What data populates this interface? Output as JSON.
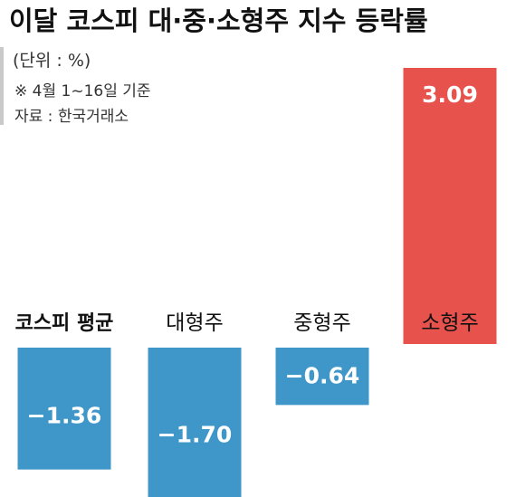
{
  "chart_data": {
    "type": "bar",
    "title": "이달 코스피 대·중·소형주 지수 등락률",
    "unit_note": "(단위 : %)",
    "period_note": "※ 4월 1~16일 기준",
    "source_note": "자료 : 한국거래소",
    "categories": [
      "코스피 평균",
      "대형주",
      "중형주",
      "소형주"
    ],
    "values": [
      -1.36,
      -1.7,
      -0.64,
      3.09
    ],
    "value_labels": [
      "−1.36",
      "−1.70",
      "−0.64",
      "3.09"
    ],
    "ylim": [
      -1.9,
      3.4
    ],
    "grid": false,
    "colors": {
      "negative": "#3f97c9",
      "positive": "#e8524d",
      "divider": "#c9c9c9"
    }
  }
}
